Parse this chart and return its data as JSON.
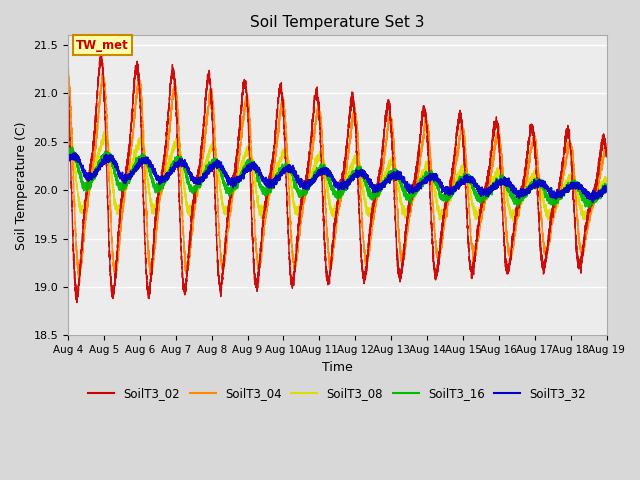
{
  "title": "Soil Temperature Set 3",
  "xlabel": "Time",
  "ylabel": "Soil Temperature (C)",
  "ylim": [
    18.5,
    21.6
  ],
  "yticks": [
    18.5,
    19.0,
    19.5,
    20.0,
    20.5,
    21.0,
    21.5
  ],
  "x_tick_labels": [
    "Aug 4",
    "Aug 5",
    "Aug 6",
    "Aug 7",
    "Aug 8",
    "Aug 9",
    "Aug 10",
    "Aug 11",
    "Aug 12",
    "Aug 13",
    "Aug 14",
    "Aug 15",
    "Aug 16",
    "Aug 17",
    "Aug 18",
    "Aug 19"
  ],
  "series_colors": {
    "SoilT3_02": "#cc0000",
    "SoilT3_04": "#ff8800",
    "SoilT3_08": "#dddd00",
    "SoilT3_16": "#00bb00",
    "SoilT3_32": "#0000cc"
  },
  "legend_label": "TW_met",
  "legend_box_color": "#ffffaa",
  "legend_box_edge": "#cc8800",
  "background_color": "#d8d8d8",
  "plot_bg_color": "#ececec",
  "n_points": 7200,
  "period_hours": 24
}
